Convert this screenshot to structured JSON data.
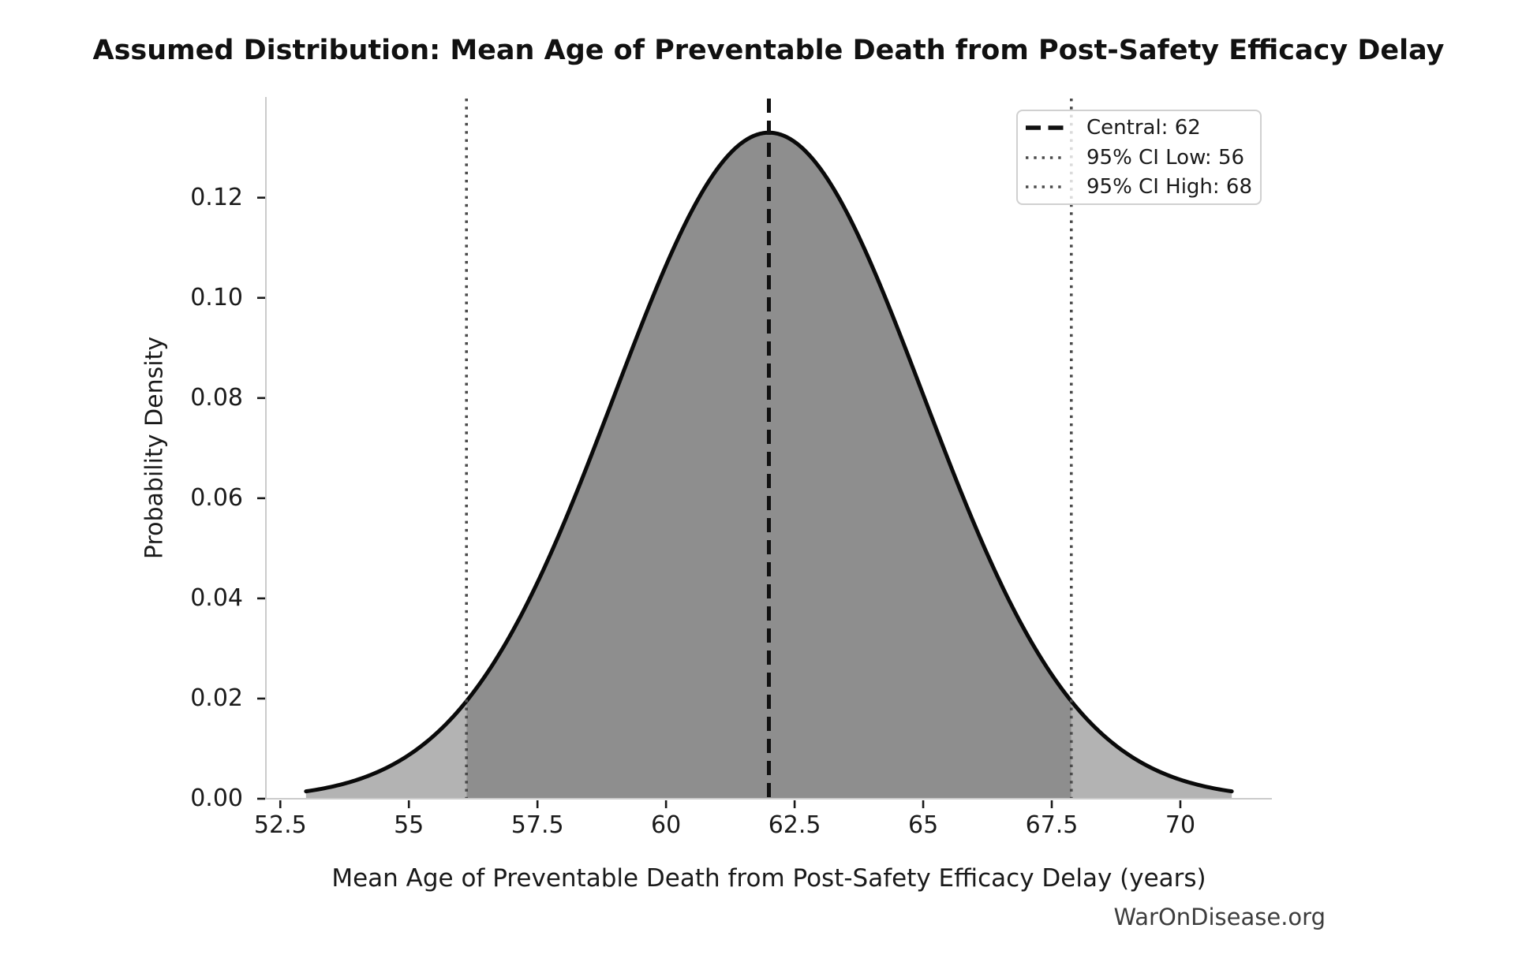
{
  "page": {
    "watermark": "WarOnDisease.org"
  },
  "chart_data": {
    "type": "line",
    "subtype": "normal-distribution-density",
    "title": "Assumed Distribution: Mean Age of Preventable Death from Post-Safety Efficacy Delay",
    "xlabel": "Mean Age of Preventable Death from Post-Safety Efficacy Delay (years)",
    "ylabel": "Probability Density",
    "distribution": {
      "kind": "normal",
      "mean": 62,
      "sd": 3,
      "peak_density": 0.133
    },
    "central_value": 62,
    "ci_level": "95%",
    "ci_low": 56,
    "ci_high": 68,
    "curve_x_range": [
      53,
      71
    ],
    "xlim": [
      52.22,
      71.78
    ],
    "ylim": [
      0,
      0.1401
    ],
    "grid": false,
    "x_ticks": {
      "values": [
        52.5,
        55,
        57.5,
        60,
        62.5,
        65,
        67.5,
        70
      ],
      "labels": [
        "52.5",
        "55",
        "57.5",
        "60",
        "62.5",
        "65",
        "67.5",
        "70"
      ]
    },
    "y_ticks": {
      "values": [
        0.0,
        0.02,
        0.04,
        0.06,
        0.08,
        0.1,
        0.12
      ],
      "labels": [
        "0.00",
        "0.02",
        "0.04",
        "0.06",
        "0.08",
        "0.10",
        "0.12"
      ]
    },
    "series": [
      {
        "name": "pdf",
        "x": [
          53,
          54,
          55,
          56,
          57,
          58,
          59,
          60,
          61,
          62,
          63,
          64,
          65,
          66,
          67,
          68,
          69,
          70,
          71
        ],
        "y": [
          0.00148,
          0.0038,
          0.00874,
          0.018,
          0.03316,
          0.05467,
          0.08066,
          0.10648,
          0.1258,
          0.13298,
          0.1258,
          0.10648,
          0.08066,
          0.05467,
          0.03316,
          0.018,
          0.00874,
          0.0038,
          0.00148
        ]
      }
    ],
    "legend": {
      "position": "upper right",
      "entries": [
        {
          "label": "Central: 62",
          "line_style": "dashed",
          "color": "#111111"
        },
        {
          "label": "95% CI Low: 56",
          "line_style": "dotted",
          "color": "#4a4a4a"
        },
        {
          "label": "95% CI High: 68",
          "line_style": "dotted",
          "color": "#4a4a4a"
        }
      ]
    },
    "colors": {
      "curve": "#0a0a0a",
      "fill_ci": "#8e8e8e",
      "fill_tails": "#b3b3b3",
      "central_line": "#111111",
      "ci_line": "#4a4a4a",
      "spine": "#cbcbcb",
      "tick": "#1a1a1a",
      "text": "#1a1a1a",
      "watermark": "#3d3d3d"
    }
  }
}
